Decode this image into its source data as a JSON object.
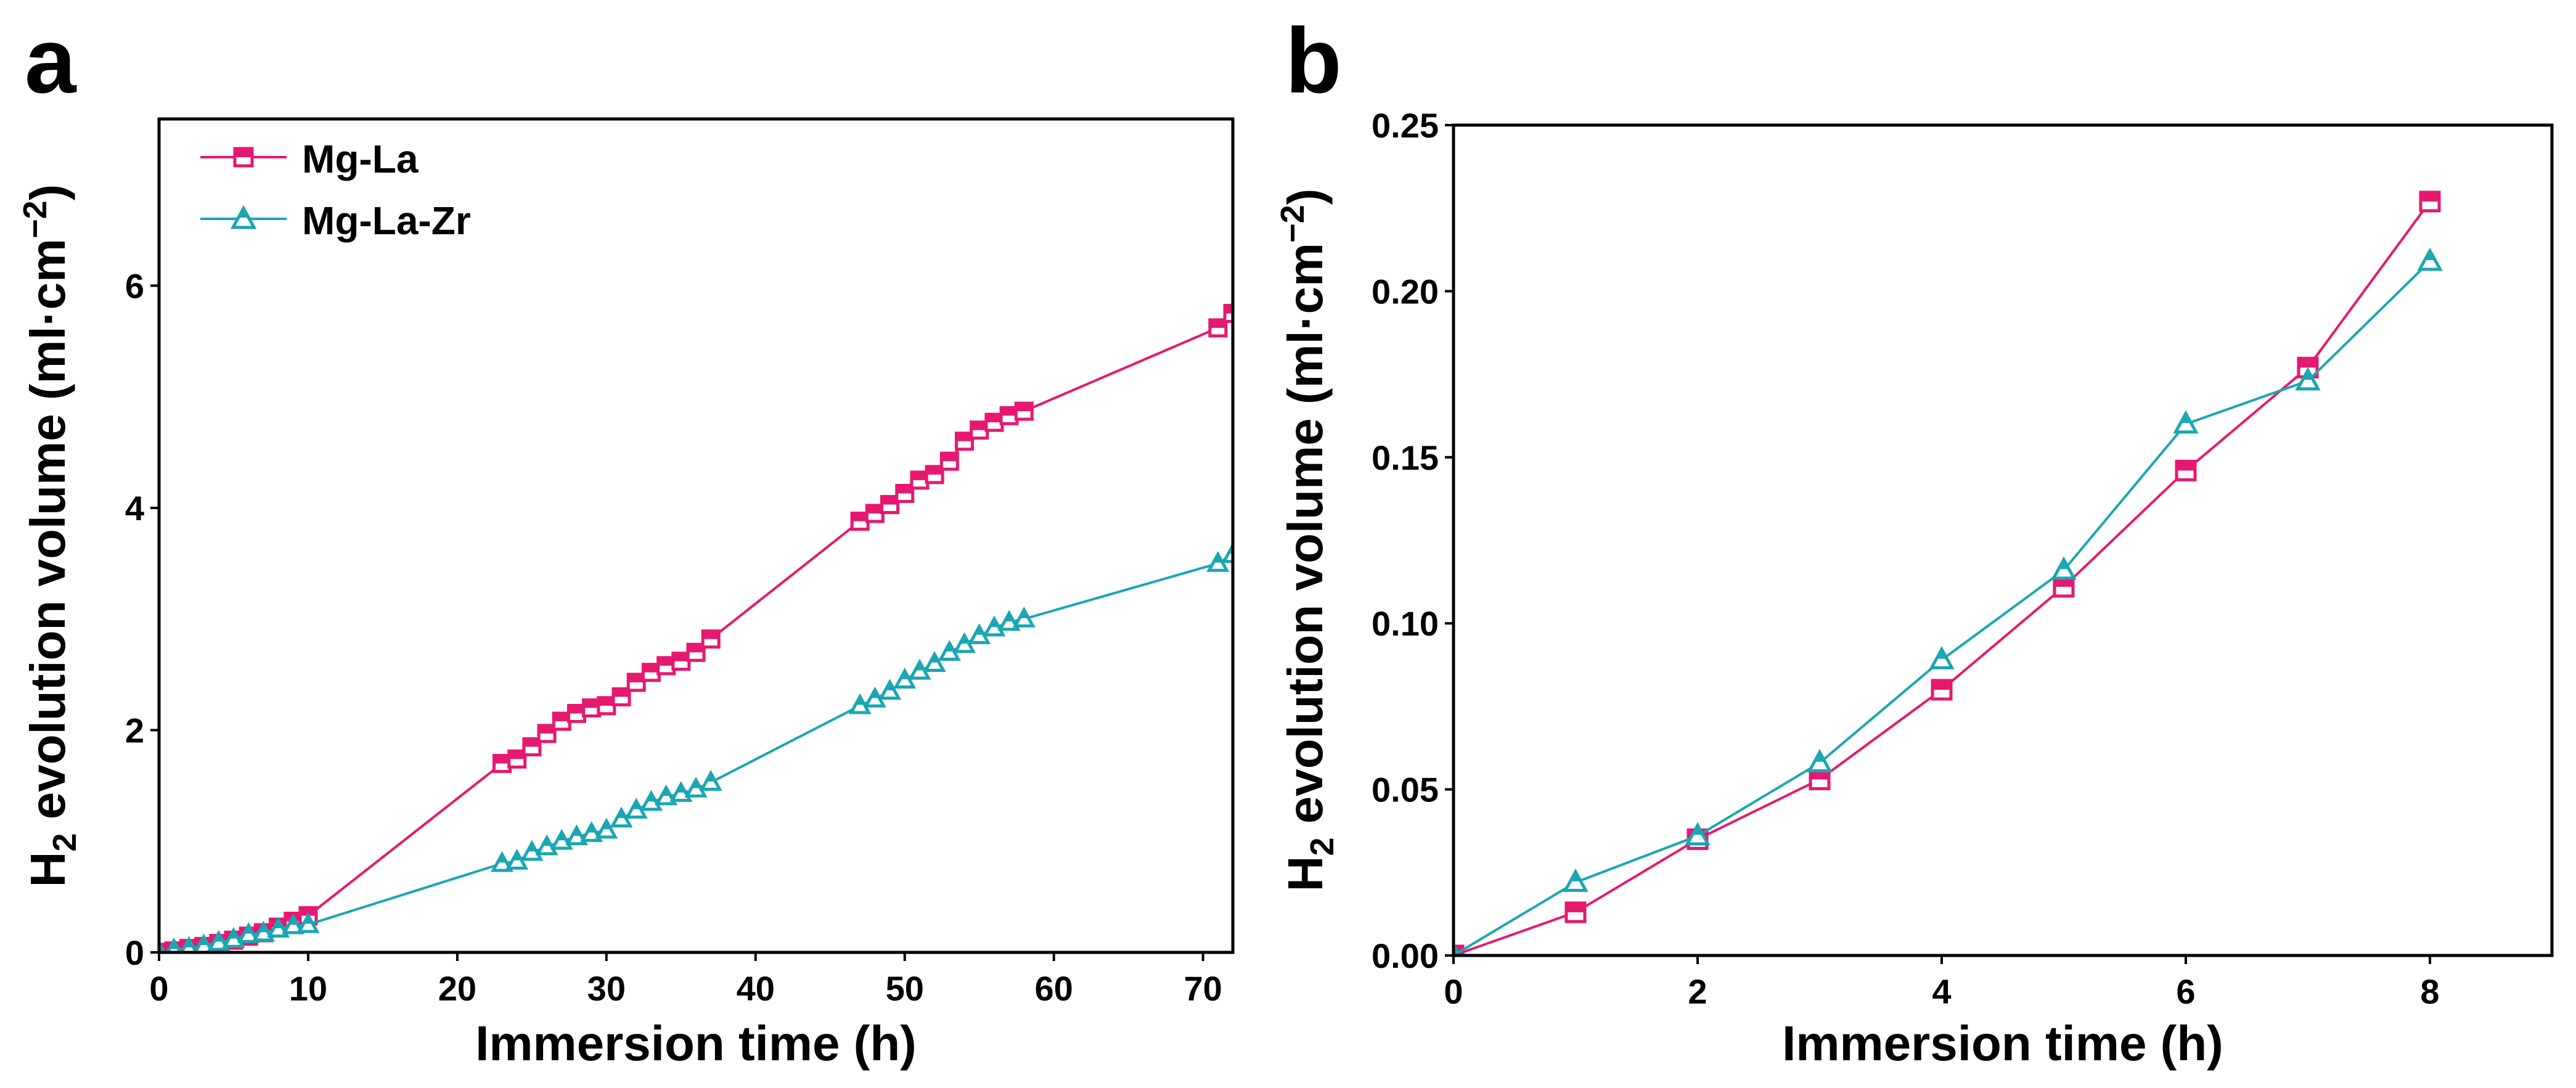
{
  "figure": {
    "colors": {
      "mg_la": "#e6186f",
      "mg_la_zr": "#1aa6b2",
      "axis": "#000000"
    }
  },
  "chart_data": [
    {
      "type": "line",
      "panel_label": "a",
      "xlabel": "Immersion time (h)",
      "ylabel_main": "H",
      "ylabel_sub": "2",
      "ylabel_rest": " evolution volume (ml·cm",
      "ylabel_sup": "−2",
      "ylabel_close": ")",
      "xlim": [
        0,
        72
      ],
      "ylim": [
        0,
        7.5
      ],
      "xticks": [
        0,
        10,
        20,
        30,
        40,
        50,
        60,
        70
      ],
      "xtick_labels": [
        "0",
        "10",
        "20",
        "30",
        "40",
        "50",
        "60",
        "70"
      ],
      "yticks": [
        0,
        2,
        4,
        6
      ],
      "ytick_labels": [
        "0",
        "2",
        "4",
        "6"
      ],
      "legend_position": "top-left",
      "series": [
        {
          "name": "Mg-La",
          "marker": "square",
          "color": "#e6186f",
          "x": [
            0,
            1,
            2,
            3,
            4,
            5,
            6,
            7,
            8,
            9,
            10,
            23,
            24,
            25,
            26,
            27,
            28,
            29,
            30,
            31,
            32,
            33,
            34,
            35,
            36,
            37,
            47,
            48,
            49,
            50,
            51,
            52,
            53,
            54,
            55,
            56,
            57,
            58,
            71,
            72
          ],
          "y": [
            0,
            0.013,
            0.035,
            0.053,
            0.08,
            0.11,
            0.146,
            0.177,
            0.227,
            0.28,
            0.33,
            1.7,
            1.74,
            1.85,
            1.97,
            2.08,
            2.15,
            2.2,
            2.22,
            2.3,
            2.43,
            2.52,
            2.58,
            2.62,
            2.7,
            2.82,
            3.88,
            3.95,
            4.03,
            4.13,
            4.25,
            4.3,
            4.42,
            4.6,
            4.7,
            4.77,
            4.83,
            4.87,
            5.62,
            5.75
          ]
        },
        {
          "name": "Mg-La-Zr",
          "marker": "triangle",
          "color": "#1aa6b2",
          "x": [
            0,
            1,
            2,
            3,
            4,
            5,
            6,
            7,
            8,
            9,
            10,
            23,
            24,
            25,
            26,
            27,
            28,
            29,
            30,
            31,
            32,
            33,
            34,
            35,
            36,
            37,
            47,
            48,
            49,
            50,
            51,
            52,
            53,
            54,
            55,
            56,
            57,
            58,
            71,
            72
          ],
          "y": [
            0,
            0.022,
            0.036,
            0.058,
            0.089,
            0.116,
            0.16,
            0.173,
            0.209,
            0.24,
            0.25,
            0.8,
            0.82,
            0.9,
            0.95,
            1.0,
            1.04,
            1.07,
            1.1,
            1.2,
            1.28,
            1.35,
            1.4,
            1.43,
            1.47,
            1.53,
            2.22,
            2.28,
            2.35,
            2.45,
            2.53,
            2.6,
            2.7,
            2.77,
            2.85,
            2.92,
            2.97,
            3.0,
            3.5,
            3.58
          ]
        }
      ]
    },
    {
      "type": "line",
      "panel_label": "b",
      "xlabel": "Immersion time (h)",
      "ylabel_main": "H",
      "ylabel_sub": "2",
      "ylabel_rest": " evolution volume (ml·cm",
      "ylabel_sup": "−2",
      "ylabel_close": ")",
      "xlim": [
        0,
        9
      ],
      "ylim": [
        0,
        0.25
      ],
      "xticks": [
        0,
        2,
        4,
        6,
        8
      ],
      "xtick_labels": [
        "0",
        "2",
        "4",
        "6",
        "8"
      ],
      "yticks": [
        0,
        0.05,
        0.1,
        0.15,
        0.2,
        0.25
      ],
      "ytick_labels": [
        "0.00",
        "0.05",
        "0.10",
        "0.15",
        "0.20",
        "0.25"
      ],
      "series": [
        {
          "name": "Mg-La",
          "marker": "square",
          "color": "#e6186f",
          "x": [
            0,
            1,
            2,
            3,
            4,
            5,
            6,
            7,
            8
          ],
          "y": [
            0,
            0.013,
            0.035,
            0.053,
            0.08,
            0.111,
            0.146,
            0.177,
            0.227
          ]
        },
        {
          "name": "Mg-La-Zr",
          "marker": "triangle",
          "color": "#1aa6b2",
          "x": [
            0,
            1,
            2,
            3,
            4,
            5,
            6,
            7,
            8
          ],
          "y": [
            0,
            0.022,
            0.036,
            0.058,
            0.089,
            0.116,
            0.16,
            0.173,
            0.209
          ]
        }
      ]
    }
  ]
}
